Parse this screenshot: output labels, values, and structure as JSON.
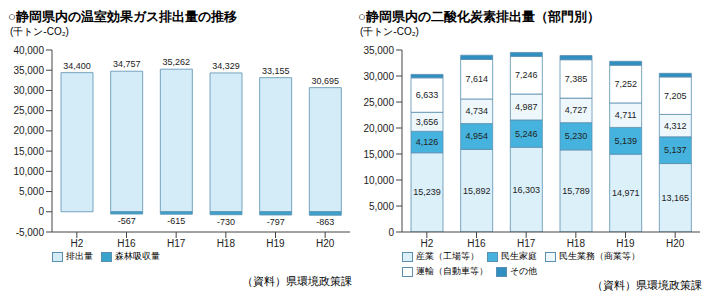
{
  "chart_data": [
    {
      "type": "bar",
      "title": "○静岡県内の温室効果ガス排出量の推移",
      "ylabel": "(千トン-CO₂)",
      "source": "（資料）県環境政策課",
      "categories": [
        "H2",
        "H16",
        "H17",
        "H18",
        "H19",
        "H20"
      ],
      "stacked": true,
      "grid": false,
      "legend": "bottom",
      "data_labels": true,
      "ylim": [
        -5000,
        40000
      ],
      "yticks": [
        {
          "value": -5000,
          "label": "-5,000"
        },
        0,
        {
          "value": 5000,
          "label": "5,000"
        },
        {
          "value": 10000,
          "label": "10,000"
        },
        {
          "value": 15000,
          "label": "15,000"
        },
        {
          "value": 20000,
          "label": "20,000"
        },
        {
          "value": 25000,
          "label": "25,000"
        },
        {
          "value": 30000,
          "label": "30,000"
        },
        {
          "value": 35000,
          "label": "35,000"
        },
        {
          "value": 40000,
          "label": "40,000"
        }
      ],
      "series": [
        {
          "name": "排出量",
          "color": "#d3ecf8",
          "values": [
            34400,
            34757,
            35262,
            34329,
            33155,
            30695
          ],
          "value_labels": [
            "34,400",
            "34,757",
            "35,262",
            "34,329",
            "33,155",
            "30,695"
          ]
        },
        {
          "name": "森林吸収量",
          "color": "#3aa3cc",
          "values": [
            null,
            -567,
            -615,
            -730,
            -797,
            -863
          ]
        }
      ]
    },
    {
      "type": "bar",
      "title": "○静岡県内の二酸化炭素排出量（部門別）",
      "ylabel": "(千トン-CO₂)",
      "source": "（資料）県環境政策課",
      "categories": [
        "H2",
        "H16",
        "H17",
        "H18",
        "H19",
        "H20"
      ],
      "stacked": true,
      "grid": false,
      "legend": "bottom",
      "ylim": [
        0,
        35000
      ],
      "yticks": [
        0,
        {
          "value": 5000,
          "label": "5,000"
        },
        {
          "value": 10000,
          "label": "10,000"
        },
        {
          "value": 15000,
          "label": "15,000"
        },
        {
          "value": 20000,
          "label": "20,000"
        },
        {
          "value": 25000,
          "label": "25,000"
        },
        {
          "value": 30000,
          "label": "30,000"
        },
        {
          "value": 35000,
          "label": "35,000"
        }
      ],
      "series": [
        {
          "name": "産業（工場等）",
          "color": "#dcf0fa",
          "data_labels": true,
          "values": [
            15239,
            15892,
            16303,
            15789,
            14971,
            13165
          ],
          "value_labels": [
            "15,239",
            "15,892",
            "16,303",
            "15,789",
            "14,971",
            "13,165"
          ]
        },
        {
          "name": "民生家庭",
          "color": "#45b3dd",
          "data_labels": true,
          "values": [
            4126,
            4954,
            5246,
            5230,
            5139,
            5137
          ],
          "value_labels": [
            "4,126",
            "4,954",
            "5,246",
            "5,230",
            "5,139",
            "5,137"
          ]
        },
        {
          "name": "民生業務（商業等）",
          "color": "#eef7fc",
          "data_labels": true,
          "values": [
            3656,
            4734,
            4987,
            4727,
            4711,
            4312
          ],
          "value_labels": [
            "3,656",
            "4,734",
            "4,987",
            "4,727",
            "4,711",
            "4,312"
          ]
        },
        {
          "name": "運輸（自動車等）",
          "color": "#ffffff",
          "data_labels": true,
          "values": [
            6633,
            7614,
            7246,
            7385,
            7252,
            7205
          ],
          "value_labels": [
            "6,633",
            "7,614",
            "7,246",
            "7,385",
            "7,252",
            "7,205"
          ]
        },
        {
          "name": "その他",
          "color": "#2f8fc0",
          "data_labels": false,
          "values": [
            650,
            800,
            750,
            800,
            750,
            700
          ]
        }
      ]
    }
  ]
}
